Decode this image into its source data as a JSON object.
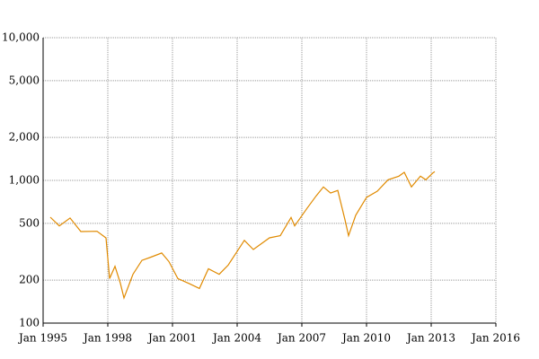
{
  "chart_data": {
    "type": "line",
    "log_y": true,
    "grid": true,
    "x": [
      "1995-05",
      "1995-10",
      "1996-04",
      "1996-10",
      "1997-07",
      "1997-12",
      "1998-02",
      "1998-05",
      "1998-08",
      "1998-10",
      "1999-03",
      "1999-08",
      "2000-01",
      "2000-07",
      "2000-11",
      "2001-04",
      "2001-10",
      "2002-04",
      "2002-09",
      "2003-03",
      "2003-08",
      "2004-01",
      "2004-05",
      "2004-10",
      "2005-07",
      "2006-01",
      "2006-07",
      "2006-09",
      "2007-04",
      "2007-09",
      "2008-01",
      "2008-05",
      "2008-09",
      "2009-01",
      "2009-03",
      "2009-07",
      "2010-01",
      "2010-07",
      "2011-01",
      "2011-07",
      "2011-10",
      "2012-02",
      "2012-07",
      "2012-10",
      "2013-02",
      "2013-03"
    ],
    "series": [
      {
        "color": "#e08a00",
        "values": [
          552,
          480,
          545,
          438,
          440,
          395,
          205,
          250,
          190,
          150,
          220,
          275,
          290,
          310,
          270,
          205,
          190,
          175,
          240,
          220,
          255,
          318,
          380,
          328,
          396,
          410,
          550,
          480,
          640,
          780,
          900,
          815,
          850,
          530,
          410,
          570,
          760,
          840,
          1010,
          1070,
          1140,
          900,
          1070,
          1010,
          1130,
          1150
        ]
      }
    ],
    "xlim": [
      "1995-01",
      "2016-01"
    ],
    "xticks": [
      {
        "value": "1995-01",
        "label": "Jan 1995"
      },
      {
        "value": "1998-01",
        "label": "Jan 1998"
      },
      {
        "value": "2001-01",
        "label": "Jan 2001"
      },
      {
        "value": "2004-01",
        "label": "Jan 2004"
      },
      {
        "value": "2007-01",
        "label": "Jan 2007"
      },
      {
        "value": "2010-01",
        "label": "Jan 2010"
      },
      {
        "value": "2013-01",
        "label": "Jan 2013"
      },
      {
        "value": "2016-01",
        "label": "Jan 2016"
      }
    ],
    "ylim": [
      100,
      10000
    ],
    "yticks": [
      100,
      200,
      500,
      {
        "value": 1000,
        "label": "1,000"
      },
      {
        "value": 2000,
        "label": "2,000"
      },
      {
        "value": 5000,
        "label": "5,000"
      },
      {
        "value": 10000,
        "label": "10,000"
      }
    ]
  }
}
